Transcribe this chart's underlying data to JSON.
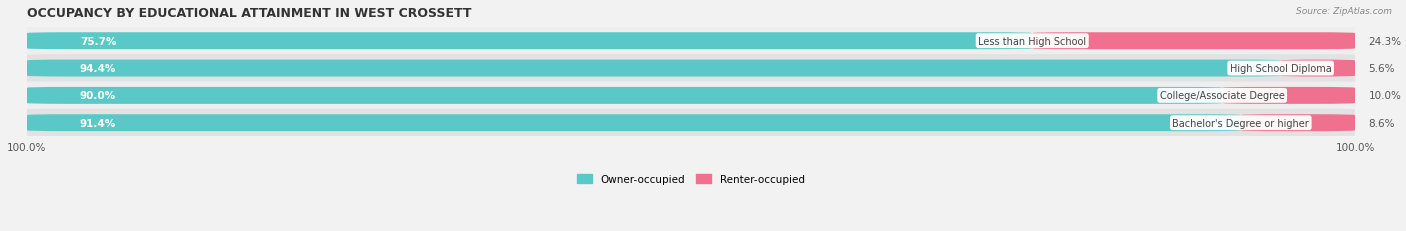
{
  "title": "OCCUPANCY BY EDUCATIONAL ATTAINMENT IN WEST CROSSETT",
  "source": "Source: ZipAtlas.com",
  "categories": [
    "Less than High School",
    "High School Diploma",
    "College/Associate Degree",
    "Bachelor's Degree or higher"
  ],
  "owner_pct": [
    75.7,
    94.4,
    90.0,
    91.4
  ],
  "renter_pct": [
    24.3,
    5.6,
    10.0,
    8.6
  ],
  "owner_color": "#5BC8C8",
  "renter_color": "#F07090",
  "row_bg_light": "#EEEEEE",
  "row_bg_dark": "#E2E2E2",
  "label_bg": "#FFFFFF",
  "axis_label_left": "100.0%",
  "axis_label_right": "100.0%",
  "title_fontsize": 9,
  "bar_height": 0.62,
  "figsize": [
    14.06,
    2.32
  ]
}
